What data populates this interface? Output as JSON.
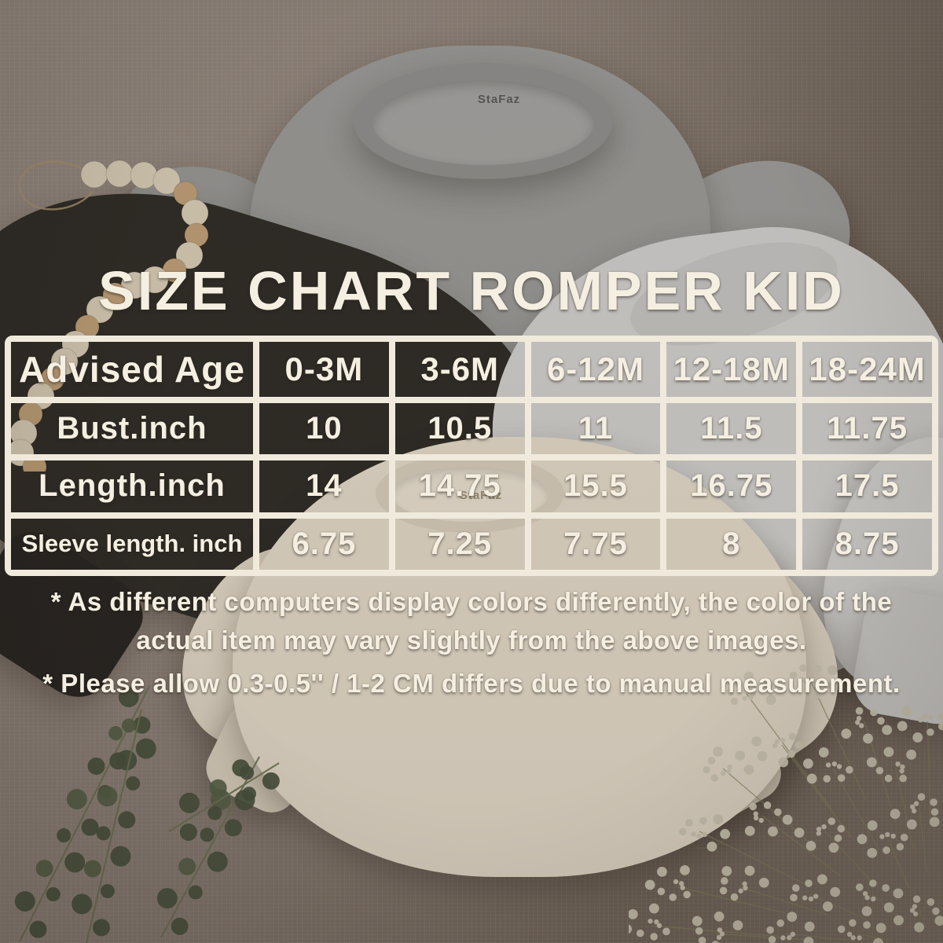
{
  "title": "SIZE CHART ROMPER KID",
  "brand": {
    "logo_text": "StaFaz"
  },
  "chart_data": {
    "type": "table",
    "title": "SIZE CHART ROMPER KID",
    "columns": [
      "Advised Age",
      "0-3M",
      "3-6M",
      "6-12M",
      "12-18M",
      "18-24M"
    ],
    "rows": [
      {
        "label": "Bust.inch",
        "values": [
          "10",
          "10.5",
          "11",
          "11.5",
          "11.75"
        ]
      },
      {
        "label": "Length.inch",
        "values": [
          "14",
          "14.75",
          "15.5",
          "16.75",
          "17.5"
        ]
      },
      {
        "label": "Sleeve length. inch",
        "values": [
          "6.75",
          "7.25",
          "7.75",
          "8",
          "8.75"
        ]
      }
    ]
  },
  "notes": [
    "* As different computers display colors differently, the color of the actual item may vary slightly from the above images.",
    "* Please allow 0.3-0.5'' / 1-2 CM differs due to manual measurement."
  ],
  "colors": {
    "text_cream": "#f5efe2",
    "table_border": "#f0eadc",
    "fabric_taupe": "#8d8178",
    "romper_gray": "#9a9a98",
    "romper_black": "#2d2a25",
    "romper_white": "#d2d1cf",
    "romper_cream": "#e4dbca",
    "eucalyptus_green": "#47503c",
    "bead_cream": "#d9ceb7",
    "bead_tan": "#bfa077"
  }
}
